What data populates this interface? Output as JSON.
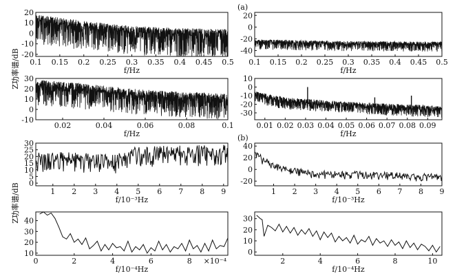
{
  "panel_labels": {
    "a": "(a)",
    "b": "(b)"
  },
  "ylabel_top": "Z功率谱/dB",
  "ylabel_bottom": "Z功率谱/dB",
  "chart_data": [
    {
      "type": "line",
      "id": "a1",
      "xlabel": "f/Hz",
      "xlim": [
        0.1,
        0.5
      ],
      "ylim": [
        -22,
        20
      ],
      "xticks": [
        0.1,
        0.15,
        0.2,
        0.25,
        0.3,
        0.35,
        0.4,
        0.45,
        0.5
      ],
      "xticklabels": [
        "0.1",
        "0.15",
        "0.2",
        "0.25",
        "0.3",
        "0.35",
        "0.4",
        "0.45",
        "0.5"
      ],
      "yticks": [
        -20,
        -10,
        0,
        10,
        20
      ],
      "yticklabels": [
        "-20",
        "-10",
        "0",
        "10",
        "20"
      ],
      "series": [
        {
          "trend": [
            [
              0.1,
              12
            ],
            [
              0.2,
              6
            ],
            [
              0.3,
              1
            ],
            [
              0.4,
              -1
            ],
            [
              0.5,
              -2
            ]
          ],
          "band_up": 6,
          "band_down": 22,
          "style": "dense-noise"
        }
      ]
    },
    {
      "type": "line",
      "id": "a2",
      "xlabel": "f/Hz",
      "xlim": [
        0.1,
        0.5
      ],
      "ylim": [
        -50,
        25
      ],
      "xticks": [
        0.1,
        0.15,
        0.2,
        0.25,
        0.3,
        0.35,
        0.4,
        0.45,
        0.5
      ],
      "xticklabels": [
        "0.1",
        "0.15",
        "0.2",
        "0.25",
        "0.3",
        "0.35",
        "0.4",
        "0.45",
        "0.5"
      ],
      "yticks": [
        -40,
        -20,
        0,
        20
      ],
      "yticklabels": [
        "-40",
        "-20",
        "0",
        "20"
      ],
      "series": [
        {
          "trend": [
            [
              0.1,
              -26
            ],
            [
              0.3,
              -29
            ],
            [
              0.5,
              -30
            ]
          ],
          "band_up": 5,
          "band_down": 12,
          "style": "dense-noise"
        }
      ]
    },
    {
      "type": "line",
      "id": "a3",
      "xlabel": "f/Hz",
      "xlim": [
        0.007,
        0.1
      ],
      "ylim": [
        -10,
        30
      ],
      "xticks": [
        0.02,
        0.04,
        0.06,
        0.08,
        0.1
      ],
      "xticklabels": [
        "0.02",
        "0.04",
        "0.06",
        "0.08",
        "0.1"
      ],
      "yticks": [
        -10,
        0,
        10,
        20,
        30
      ],
      "yticklabels": [
        "-10",
        "0",
        "10",
        "20",
        "30"
      ],
      "series": [
        {
          "trend": [
            [
              0.007,
              22
            ],
            [
              0.03,
              18
            ],
            [
              0.06,
              12
            ],
            [
              0.1,
              8
            ]
          ],
          "band_up": 7,
          "band_down": 18,
          "style": "dense-noise"
        }
      ]
    },
    {
      "type": "line",
      "id": "a4",
      "xlabel": "f/Hz",
      "xlim": [
        0.005,
        0.097
      ],
      "ylim": [
        -38,
        10
      ],
      "xticks": [
        0.01,
        0.02,
        0.03,
        0.04,
        0.05,
        0.06,
        0.07,
        0.08,
        0.09
      ],
      "xticklabels": [
        "0.01",
        "0.02",
        "0.03",
        "0.04",
        "0.05",
        "0.06",
        "0.07",
        "0.08",
        "0.09"
      ],
      "yticks": [
        -30,
        -20,
        -10,
        0,
        10
      ],
      "yticklabels": [
        "-30",
        "-20",
        "-10",
        "0",
        "10"
      ],
      "series": [
        {
          "trend": [
            [
              0.005,
              -10
            ],
            [
              0.02,
              -17
            ],
            [
              0.05,
              -22
            ],
            [
              0.097,
              -27
            ]
          ],
          "band_up": 5,
          "band_down": 9,
          "style": "dense-noise",
          "spikes": [
            [
              0.031,
              0
            ],
            [
              0.064,
              -12
            ],
            [
              0.082,
              -10
            ]
          ]
        }
      ]
    },
    {
      "type": "line",
      "id": "b1",
      "xlabel": "f/10⁻³Hz",
      "xlim": [
        0.2,
        9.2
      ],
      "ylim": [
        -2,
        30
      ],
      "xticks": [
        1,
        2,
        3,
        4,
        5,
        6,
        7,
        8,
        9
      ],
      "xticklabels": [
        "1",
        "2",
        "3",
        "4",
        "5",
        "6",
        "7",
        "8",
        "9"
      ],
      "yticks": [
        0,
        5,
        10,
        15,
        20,
        25,
        30
      ],
      "yticklabels": [
        "0",
        "5",
        "10",
        "15",
        "20",
        "25",
        "30"
      ],
      "series": [
        {
          "trend": [
            [
              0.2,
              18
            ],
            [
              4,
              16
            ],
            [
              5,
              22
            ],
            [
              9.2,
              23
            ]
          ],
          "band_up": 6,
          "band_down": 10,
          "style": "noise"
        }
      ]
    },
    {
      "type": "line",
      "id": "b2",
      "xlabel": "f/10⁻³Hz",
      "xlim": [
        0.1,
        9.0
      ],
      "ylim": [
        -28,
        45
      ],
      "xticks": [
        1,
        2,
        3,
        4,
        5,
        6,
        7,
        8,
        9
      ],
      "xticklabels": [
        "1",
        "2",
        "3",
        "4",
        "5",
        "6",
        "7",
        "8",
        "9"
      ],
      "yticks": [
        -20,
        0,
        20,
        40
      ],
      "yticklabels": [
        "-20",
        "0",
        "20",
        "40"
      ],
      "series": [
        {
          "trend": [
            [
              0.1,
              30
            ],
            [
              0.5,
              15
            ],
            [
              1.5,
              0
            ],
            [
              3,
              -8
            ],
            [
              6,
              -10
            ],
            [
              9,
              -14
            ]
          ],
          "band_up": 6,
          "band_down": 8,
          "style": "noise"
        }
      ]
    },
    {
      "type": "line",
      "id": "b3",
      "xlabel": "f/10⁻⁴Hz",
      "xlim": [
        0,
        10
      ],
      "ylim": [
        8,
        48
      ],
      "xticks": [
        0,
        2,
        4,
        6,
        8
      ],
      "xticklabels": [
        "0",
        "2",
        "4",
        "6",
        "8"
      ],
      "xmultiplier": "×10⁻⁴",
      "yticks": [
        10,
        20,
        30,
        40
      ],
      "yticklabels": [
        "10",
        "20",
        "30",
        "40"
      ],
      "series": [
        {
          "points": [
            [
              0.2,
              46
            ],
            [
              0.4,
              48
            ],
            [
              0.6,
              45
            ],
            [
              0.8,
              47
            ],
            [
              1.0,
              42
            ],
            [
              1.2,
              34
            ],
            [
              1.4,
              25
            ],
            [
              1.6,
              23
            ],
            [
              1.8,
              28
            ],
            [
              2.0,
              20
            ],
            [
              2.2,
              23
            ],
            [
              2.4,
              18
            ],
            [
              2.6,
              24
            ],
            [
              2.8,
              14
            ],
            [
              3.0,
              17
            ],
            [
              3.2,
              21
            ],
            [
              3.4,
              12
            ],
            [
              3.6,
              18
            ],
            [
              3.8,
              13
            ],
            [
              4.0,
              19
            ],
            [
              4.2,
              15
            ],
            [
              4.4,
              16
            ],
            [
              4.6,
              12
            ],
            [
              4.8,
              21
            ],
            [
              5.0,
              11
            ],
            [
              5.2,
              16
            ],
            [
              5.4,
              13
            ],
            [
              5.6,
              18
            ],
            [
              5.8,
              10
            ],
            [
              6.0,
              15
            ],
            [
              6.2,
              12
            ],
            [
              6.4,
              21
            ],
            [
              6.6,
              13
            ],
            [
              6.8,
              18
            ],
            [
              7.0,
              11
            ],
            [
              7.2,
              16
            ],
            [
              7.4,
              14
            ],
            [
              7.6,
              19
            ],
            [
              7.8,
              12
            ],
            [
              8.0,
              22
            ],
            [
              8.2,
              14
            ],
            [
              8.4,
              17
            ],
            [
              8.6,
              11
            ],
            [
              8.8,
              19
            ],
            [
              9.0,
              12
            ],
            [
              9.2,
              22
            ],
            [
              9.4,
              14
            ],
            [
              9.6,
              17
            ],
            [
              9.8,
              16
            ],
            [
              10,
              24
            ]
          ]
        }
      ]
    },
    {
      "type": "line",
      "id": "b4",
      "xlabel": "f/10⁻⁴Hz",
      "xlim": [
        0.5,
        10.5
      ],
      "ylim": [
        -3,
        36
      ],
      "xticks": [
        2,
        4,
        6,
        8,
        10
      ],
      "xticklabels": [
        "2",
        "4",
        "6",
        "8",
        "10"
      ],
      "yticks": [
        0,
        10,
        20,
        30
      ],
      "yticklabels": [
        "0",
        "10",
        "20",
        "30"
      ],
      "series": [
        {
          "points": [
            [
              0.6,
              33
            ],
            [
              0.8,
              30
            ],
            [
              0.9,
              29
            ],
            [
              1.0,
              14
            ],
            [
              1.2,
              24
            ],
            [
              1.4,
              22
            ],
            [
              1.6,
              19
            ],
            [
              1.8,
              25
            ],
            [
              2.0,
              18
            ],
            [
              2.2,
              23
            ],
            [
              2.4,
              17
            ],
            [
              2.6,
              22
            ],
            [
              2.8,
              15
            ],
            [
              3.0,
              20
            ],
            [
              3.2,
              16
            ],
            [
              3.4,
              21
            ],
            [
              3.6,
              14
            ],
            [
              3.8,
              19
            ],
            [
              4.0,
              11
            ],
            [
              4.2,
              18
            ],
            [
              4.4,
              13
            ],
            [
              4.6,
              17
            ],
            [
              4.8,
              9
            ],
            [
              5.0,
              14
            ],
            [
              5.2,
              10
            ],
            [
              5.4,
              13
            ],
            [
              5.6,
              8
            ],
            [
              5.8,
              15
            ],
            [
              6.0,
              7
            ],
            [
              6.2,
              11
            ],
            [
              6.4,
              9
            ],
            [
              6.6,
              14
            ],
            [
              6.8,
              6
            ],
            [
              7.0,
              12
            ],
            [
              7.2,
              8
            ],
            [
              7.4,
              10
            ],
            [
              7.6,
              5
            ],
            [
              7.8,
              11
            ],
            [
              8.0,
              6
            ],
            [
              8.2,
              9
            ],
            [
              8.4,
              3
            ],
            [
              8.6,
              10
            ],
            [
              8.8,
              4
            ],
            [
              9.0,
              8
            ],
            [
              9.2,
              2
            ],
            [
              9.4,
              7
            ],
            [
              9.6,
              5
            ],
            [
              9.8,
              1
            ],
            [
              10.0,
              6
            ],
            [
              10.2,
              0
            ],
            [
              10.4,
              5
            ]
          ]
        }
      ]
    }
  ]
}
